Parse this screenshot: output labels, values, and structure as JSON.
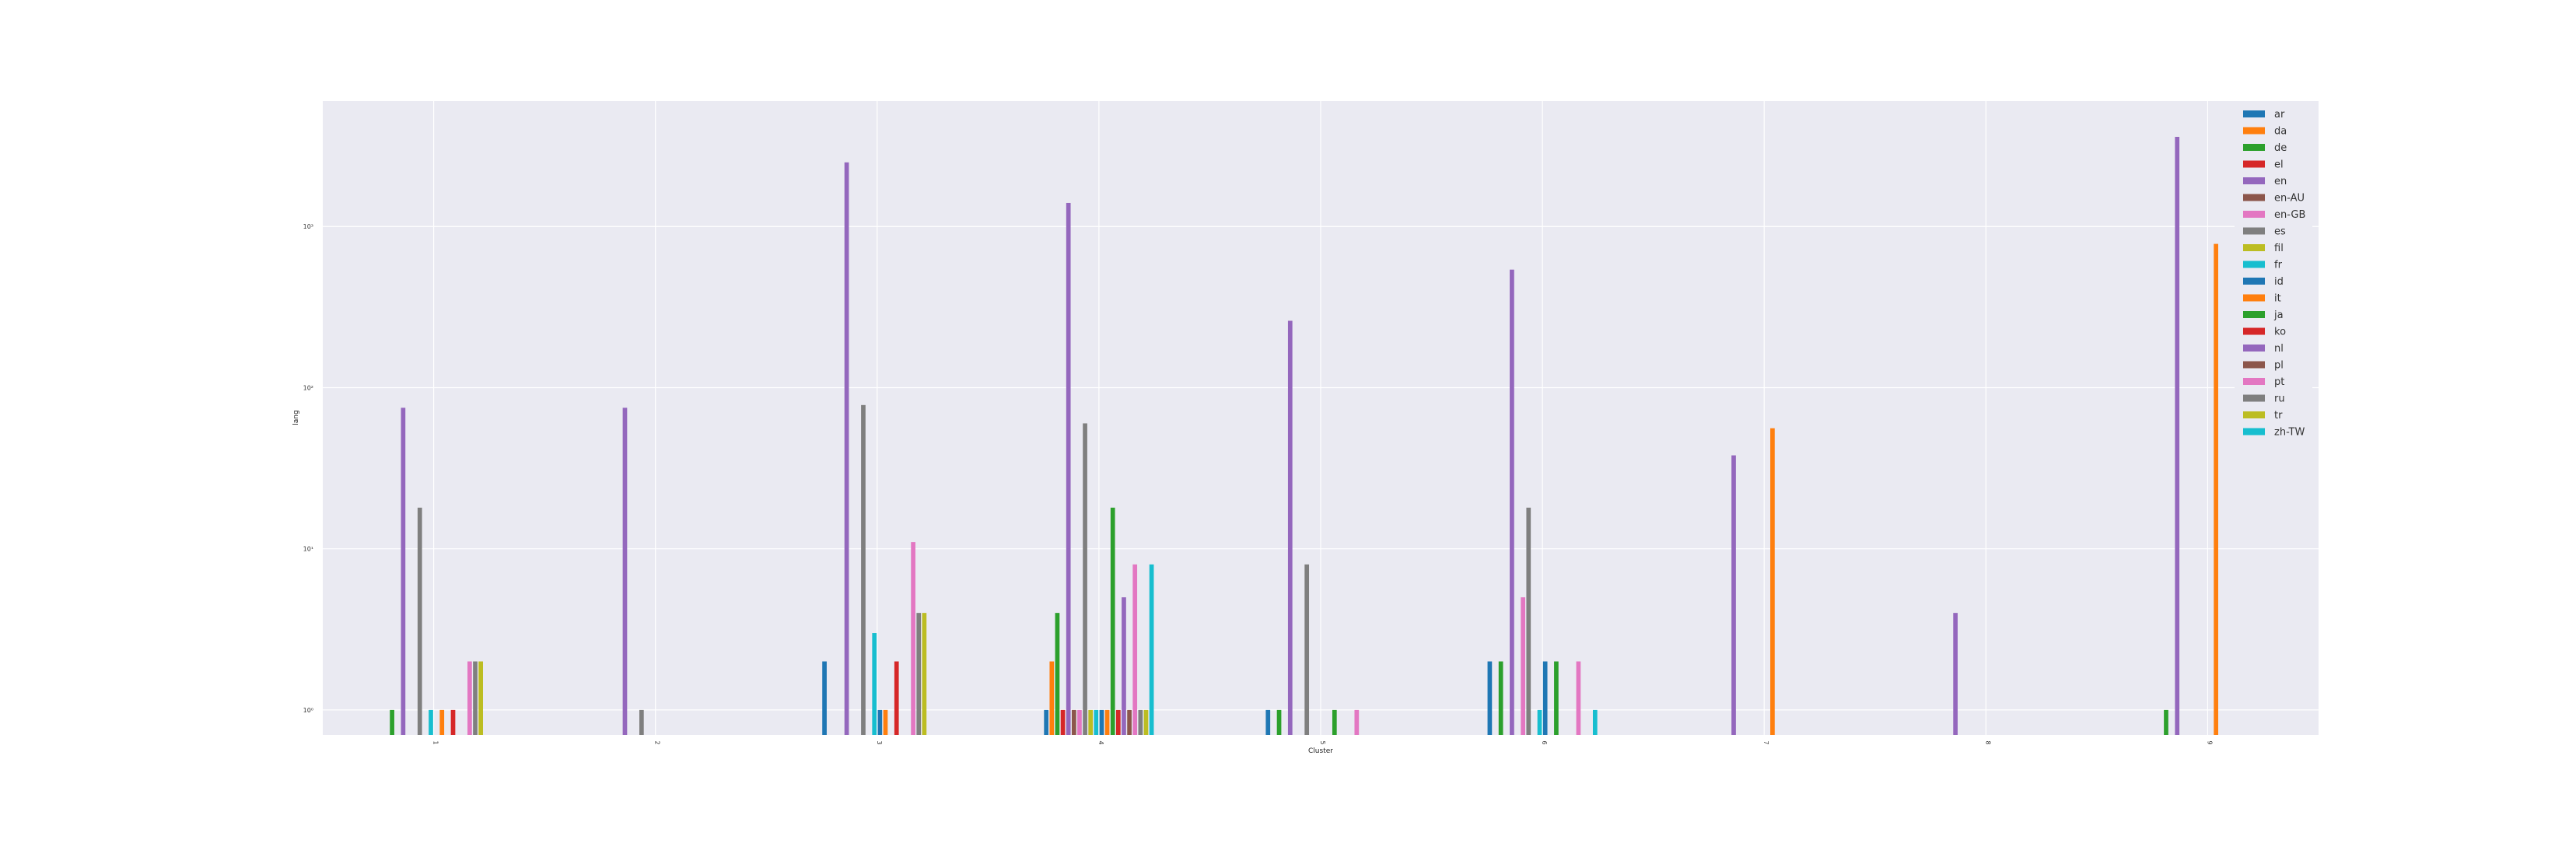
{
  "chart_data": {
    "type": "bar",
    "title": "",
    "xlabel": "Cluster",
    "ylabel": "lang",
    "y_scale": "log",
    "ylim": [
      0.7,
      6000
    ],
    "y_ticks": [
      1,
      10,
      100,
      1000
    ],
    "y_tick_labels": [
      "10⁰",
      "10¹",
      "10²",
      "10³"
    ],
    "categories": [
      "1",
      "2",
      "3",
      "4",
      "5",
      "6",
      "7",
      "8",
      "9"
    ],
    "grid": true,
    "legend_position": "top-right",
    "series": [
      {
        "name": "ar",
        "color": "#1f77b4",
        "values": [
          null,
          null,
          2,
          1,
          1,
          2,
          null,
          null,
          null
        ]
      },
      {
        "name": "da",
        "color": "#ff7f0e",
        "values": [
          null,
          null,
          null,
          2,
          null,
          null,
          null,
          null,
          null
        ]
      },
      {
        "name": "de",
        "color": "#2ca02c",
        "values": [
          1,
          null,
          null,
          4,
          1,
          2,
          null,
          null,
          1
        ]
      },
      {
        "name": "el",
        "color": "#d62728",
        "values": [
          null,
          null,
          null,
          1,
          null,
          null,
          null,
          null,
          null
        ]
      },
      {
        "name": "en",
        "color": "#9467bd",
        "values": [
          75,
          75,
          2500,
          1400,
          260,
          540,
          38,
          4,
          3600
        ]
      },
      {
        "name": "en-AU",
        "color": "#8c564b",
        "values": [
          null,
          null,
          null,
          1,
          null,
          null,
          null,
          null,
          null
        ]
      },
      {
        "name": "en-GB",
        "color": "#e377c2",
        "values": [
          null,
          null,
          null,
          1,
          null,
          5,
          null,
          null,
          null
        ]
      },
      {
        "name": "es",
        "color": "#7f7f7f",
        "values": [
          18,
          1,
          78,
          60,
          8,
          18,
          null,
          null,
          null
        ]
      },
      {
        "name": "fil",
        "color": "#bcbd22",
        "values": [
          null,
          null,
          null,
          1,
          null,
          null,
          null,
          null,
          null
        ]
      },
      {
        "name": "fr",
        "color": "#17becf",
        "values": [
          1,
          null,
          3,
          1,
          null,
          1,
          null,
          null,
          null
        ]
      },
      {
        "name": "id",
        "color": "#1f77b4",
        "values": [
          null,
          null,
          1,
          1,
          null,
          2,
          null,
          null,
          null
        ]
      },
      {
        "name": "it",
        "color": "#ff7f0e",
        "values": [
          1,
          null,
          1,
          1,
          null,
          null,
          56,
          null,
          780
        ]
      },
      {
        "name": "ja",
        "color": "#2ca02c",
        "values": [
          null,
          null,
          null,
          18,
          1,
          2,
          null,
          null,
          null
        ]
      },
      {
        "name": "ko",
        "color": "#d62728",
        "values": [
          1,
          null,
          2,
          1,
          null,
          null,
          null,
          null,
          null
        ]
      },
      {
        "name": "nl",
        "color": "#9467bd",
        "values": [
          null,
          null,
          null,
          5,
          null,
          null,
          null,
          null,
          null
        ]
      },
      {
        "name": "pl",
        "color": "#8c564b",
        "values": [
          null,
          null,
          null,
          1,
          null,
          null,
          null,
          null,
          null
        ]
      },
      {
        "name": "pt",
        "color": "#e377c2",
        "values": [
          2,
          null,
          11,
          8,
          1,
          2,
          null,
          null,
          null
        ]
      },
      {
        "name": "ru",
        "color": "#7f7f7f",
        "values": [
          2,
          null,
          4,
          1,
          null,
          null,
          null,
          null,
          null
        ]
      },
      {
        "name": "tr",
        "color": "#bcbd22",
        "values": [
          2,
          null,
          4,
          1,
          null,
          null,
          null,
          null,
          null
        ]
      },
      {
        "name": "zh-TW",
        "color": "#17becf",
        "values": [
          null,
          null,
          null,
          8,
          null,
          1,
          null,
          null,
          null
        ]
      }
    ]
  }
}
